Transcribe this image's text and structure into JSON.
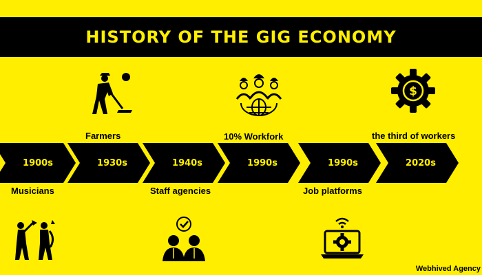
{
  "title": "HISTORY OF THE GIG ECONOMY",
  "timeline": [
    {
      "year": "1900s"
    },
    {
      "year": "1930s"
    },
    {
      "year": "1940s"
    },
    {
      "year": "1990s"
    },
    {
      "year": "1990s"
    },
    {
      "year": "2020s"
    }
  ],
  "labels": {
    "musicians": "Musicians",
    "farmers": "Farmers",
    "staff_agencies": "Staff agencies",
    "workforce": "10% Workfork",
    "job_platforms": "Job platforms",
    "third_workers": "the third of workers"
  },
  "credit": "Webhived Agency",
  "colors": {
    "background": "#FFEE00",
    "ink": "#000000"
  },
  "icons": [
    "farmer-icon",
    "workers-globe-icon",
    "dollar-gear-icon",
    "musicians-icon",
    "team-check-icon",
    "laptop-gear-icon"
  ]
}
